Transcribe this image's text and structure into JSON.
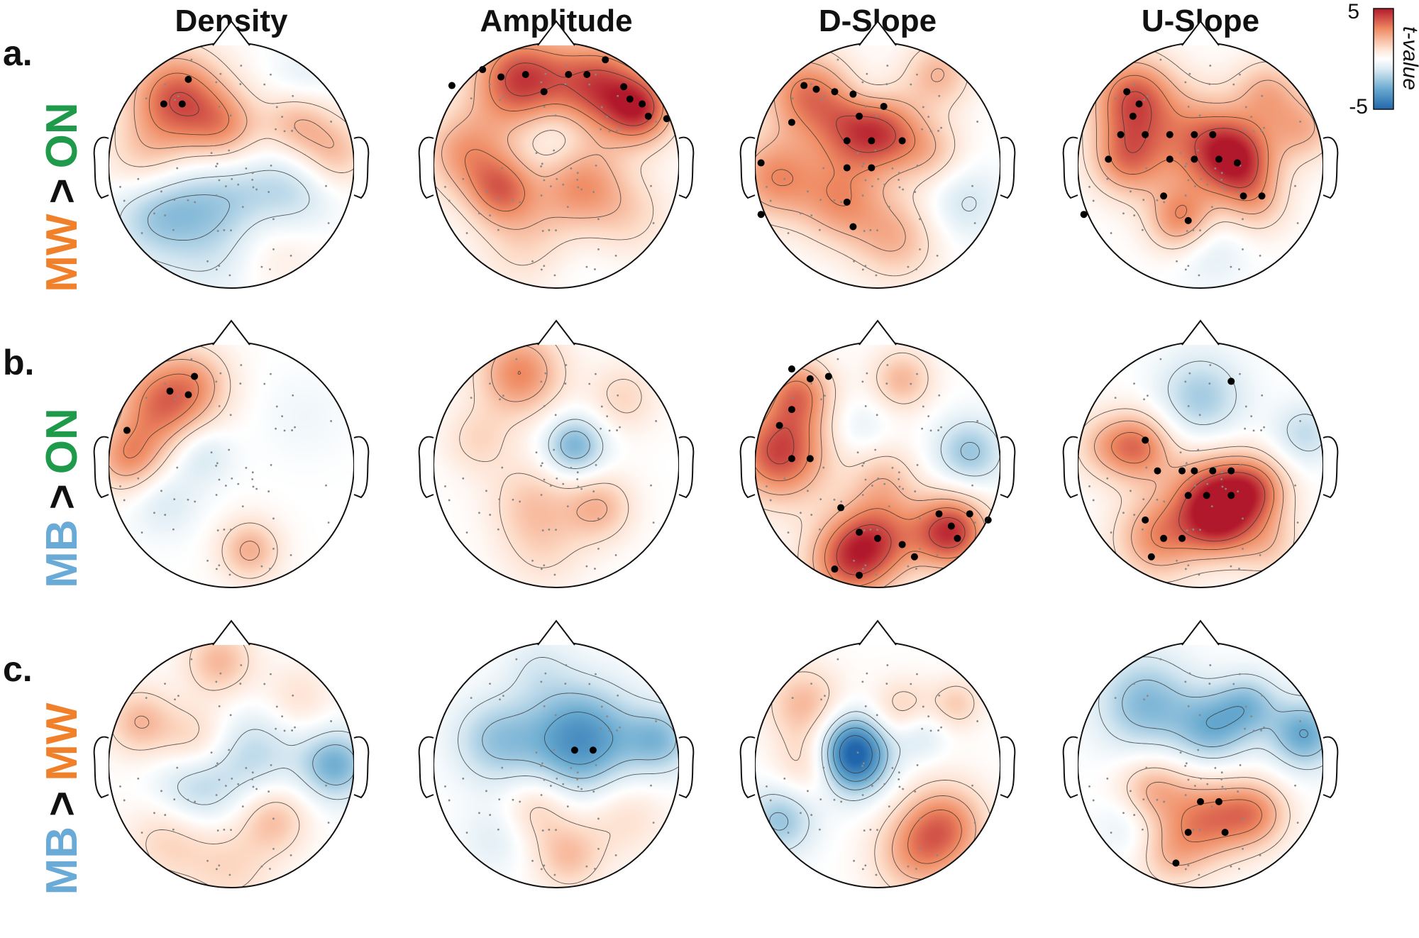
{
  "colors": {
    "mw": "#f0812a",
    "on": "#1e9a4a",
    "mb": "#6aaad6",
    "gt": "#111111",
    "red": "#b2182b",
    "blue": "#2166ac"
  },
  "chart_data": {
    "type": "heatmap",
    "title": "",
    "columns": [
      "Density",
      "Amplitude",
      "D-Slope",
      "U-Slope"
    ],
    "rows": [
      {
        "letter": "a.",
        "left": "MW",
        "op": ">",
        "right": "ON"
      },
      {
        "letter": "b.",
        "left": "MB",
        "op": ">",
        "right": "ON"
      },
      {
        "letter": "c.",
        "left": "MB",
        "op": ">",
        "right": "MW"
      }
    ],
    "colorbar": {
      "label": "t-value",
      "max_label": "5",
      "min_label": "-5",
      "range": [
        -5,
        5
      ]
    },
    "maps": [
      [
        {
          "blobs": [
            [
              -0.45,
              0.55,
              0.28,
              3.8
            ],
            [
              -0.05,
              0.3,
              0.22,
              2.3
            ],
            [
              0.55,
              0.35,
              0.2,
              2.0
            ],
            [
              -0.7,
              0.0,
              0.25,
              1.8
            ],
            [
              0.85,
              0.1,
              0.2,
              1.8
            ],
            [
              -0.6,
              -0.35,
              0.28,
              -2.4
            ],
            [
              0.0,
              -0.3,
              0.3,
              -1.8
            ],
            [
              0.5,
              -0.25,
              0.25,
              -1.6
            ],
            [
              -0.1,
              -0.75,
              0.3,
              -0.9
            ],
            [
              0.3,
              -0.6,
              0.3,
              1.3
            ],
            [
              0.6,
              0.7,
              0.2,
              -0.8
            ]
          ],
          "sig": [
            [
              -0.55,
              0.5
            ],
            [
              -0.4,
              0.5
            ],
            [
              -0.35,
              0.7
            ]
          ]
        },
        {
          "blobs": [
            [
              -0.3,
              0.7,
              0.28,
              4.2
            ],
            [
              0.35,
              0.65,
              0.28,
              3.9
            ],
            [
              0.7,
              0.45,
              0.2,
              3.5
            ],
            [
              -0.75,
              0.1,
              0.25,
              2.5
            ],
            [
              -0.45,
              -0.2,
              0.2,
              2.8
            ],
            [
              0.2,
              -0.15,
              0.25,
              2.5
            ],
            [
              0.0,
              0.25,
              0.2,
              -1.0
            ],
            [
              -0.2,
              -0.6,
              0.3,
              1.5
            ],
            [
              0.6,
              -0.4,
              0.25,
              1.2
            ],
            [
              0.1,
              -0.75,
              0.25,
              -0.5
            ]
          ],
          "sig": [
            [
              -0.6,
              0.78
            ],
            [
              -0.45,
              0.72
            ],
            [
              -0.25,
              0.74
            ],
            [
              -0.1,
              0.6
            ],
            [
              0.1,
              0.74
            ],
            [
              0.25,
              0.74
            ],
            [
              0.4,
              0.86
            ],
            [
              0.55,
              0.64
            ],
            [
              0.6,
              0.54
            ],
            [
              0.7,
              0.5
            ],
            [
              0.75,
              0.4
            ],
            [
              0.9,
              0.38
            ],
            [
              -0.85,
              0.65
            ]
          ]
        },
        {
          "blobs": [
            [
              -0.6,
              0.6,
              0.25,
              3.0
            ],
            [
              -0.2,
              0.3,
              0.25,
              3.0
            ],
            [
              0.1,
              0.25,
              0.22,
              2.5
            ],
            [
              -0.85,
              -0.1,
              0.25,
              2.8
            ],
            [
              -0.3,
              -0.3,
              0.25,
              2.5
            ],
            [
              0.15,
              -0.6,
              0.25,
              2.0
            ],
            [
              0.5,
              0.75,
              0.2,
              2.0
            ],
            [
              0.7,
              -0.3,
              0.22,
              -1.2
            ],
            [
              -0.1,
              0.6,
              0.15,
              -0.6
            ],
            [
              0.45,
              0.1,
              0.2,
              1.5
            ]
          ],
          "sig": [
            [
              -0.6,
              0.65
            ],
            [
              -0.5,
              0.62
            ],
            [
              -0.35,
              0.6
            ],
            [
              -0.2,
              0.58
            ],
            [
              -0.15,
              0.4
            ],
            [
              0.05,
              0.48
            ],
            [
              -0.7,
              0.35
            ],
            [
              -0.25,
              0.2
            ],
            [
              -0.05,
              0.2
            ],
            [
              0.2,
              0.2
            ],
            [
              -0.95,
              0.02
            ],
            [
              -0.25,
              -0.02
            ],
            [
              -0.05,
              -0.02
            ],
            [
              -0.25,
              -0.3
            ],
            [
              -0.2,
              -0.5
            ],
            [
              -0.95,
              -0.4
            ]
          ]
        },
        {
          "blobs": [
            [
              -0.55,
              0.55,
              0.25,
              3.8
            ],
            [
              -0.6,
              0.05,
              0.22,
              3.0
            ],
            [
              0.3,
              0.05,
              0.22,
              3.8
            ],
            [
              0.0,
              0.2,
              0.28,
              2.8
            ],
            [
              -0.15,
              -0.45,
              0.2,
              3.2
            ],
            [
              0.05,
              -0.65,
              0.22,
              -1.2
            ],
            [
              0.55,
              0.6,
              0.2,
              2.0
            ],
            [
              0.85,
              0.3,
              0.2,
              2.0
            ],
            [
              0.45,
              -0.3,
              0.2,
              1.8
            ]
          ],
          "sig": [
            [
              -0.6,
              0.6
            ],
            [
              -0.5,
              0.5
            ],
            [
              -0.55,
              0.4
            ],
            [
              -0.65,
              0.25
            ],
            [
              -0.45,
              0.25
            ],
            [
              -0.25,
              0.25
            ],
            [
              -0.05,
              0.25
            ],
            [
              0.1,
              0.25
            ],
            [
              -0.05,
              0.05
            ],
            [
              0.15,
              0.05
            ],
            [
              -0.25,
              0.05
            ],
            [
              -0.75,
              0.05
            ],
            [
              0.3,
              0.02
            ],
            [
              0.35,
              -0.25
            ],
            [
              0.5,
              -0.25
            ],
            [
              -0.3,
              -0.25
            ],
            [
              -0.1,
              -0.45
            ],
            [
              -0.95,
              -0.4
            ]
          ]
        }
      ],
      [
        {
          "blobs": [
            [
              -0.55,
              0.5,
              0.28,
              3.5
            ],
            [
              -0.85,
              0.05,
              0.2,
              2.5
            ],
            [
              -0.25,
              0.1,
              0.18,
              -1.4
            ],
            [
              -0.55,
              -0.3,
              0.2,
              -1.0
            ],
            [
              0.15,
              -0.7,
              0.18,
              2.2
            ],
            [
              -0.25,
              0.7,
              0.2,
              1.2
            ],
            [
              0.6,
              0.4,
              0.25,
              -0.4
            ]
          ],
          "sig": [
            [
              -0.5,
              0.6
            ],
            [
              -0.35,
              0.57
            ],
            [
              -0.3,
              0.72
            ],
            [
              -0.85,
              0.28
            ]
          ]
        },
        {
          "blobs": [
            [
              -0.3,
              0.75,
              0.25,
              3.0
            ],
            [
              0.15,
              0.15,
              0.18,
              -2.8
            ],
            [
              -0.65,
              0.2,
              0.2,
              1.2
            ],
            [
              0.35,
              -0.35,
              0.2,
              2.0
            ],
            [
              -0.2,
              -0.3,
              0.25,
              1.5
            ],
            [
              -0.1,
              -0.7,
              0.25,
              1.0
            ],
            [
              0.55,
              0.55,
              0.2,
              1.3
            ]
          ],
          "sig": []
        },
        {
          "blobs": [
            [
              -0.8,
              0.1,
              0.28,
              4.2
            ],
            [
              -0.65,
              0.6,
              0.2,
              2.8
            ],
            [
              0.6,
              -0.55,
              0.22,
              4.5
            ],
            [
              0.0,
              -0.6,
              0.25,
              3.0
            ],
            [
              -0.25,
              -0.8,
              0.25,
              3.2
            ],
            [
              0.75,
              0.1,
              0.2,
              -2.2
            ],
            [
              0.2,
              0.7,
              0.18,
              2.0
            ],
            [
              -0.15,
              0.3,
              0.18,
              -0.8
            ],
            [
              0.05,
              -0.1,
              0.2,
              1.5
            ]
          ],
          "sig": [
            [
              -0.7,
              0.78
            ],
            [
              -0.55,
              0.7
            ],
            [
              -0.4,
              0.72
            ],
            [
              -0.8,
              0.32
            ],
            [
              -0.7,
              0.45
            ],
            [
              -0.7,
              0.05
            ],
            [
              -0.55,
              0.05
            ],
            [
              -0.3,
              -0.35
            ],
            [
              -0.15,
              -0.55
            ],
            [
              0.0,
              -0.6
            ],
            [
              0.2,
              -0.65
            ],
            [
              0.3,
              -0.75
            ],
            [
              0.5,
              -0.4
            ],
            [
              0.6,
              -0.5
            ],
            [
              0.65,
              -0.6
            ],
            [
              0.75,
              -0.4
            ],
            [
              0.9,
              -0.45
            ],
            [
              -0.35,
              -0.85
            ],
            [
              -0.15,
              -0.9
            ]
          ]
        },
        {
          "blobs": [
            [
              0.0,
              0.55,
              0.25,
              -2.0
            ],
            [
              -0.5,
              0.15,
              0.2,
              3.0
            ],
            [
              0.1,
              -0.25,
              0.25,
              3.8
            ],
            [
              0.45,
              -0.2,
              0.2,
              3.0
            ],
            [
              -0.35,
              -0.6,
              0.25,
              2.8
            ],
            [
              0.85,
              0.25,
              0.18,
              -1.5
            ],
            [
              -0.8,
              0.15,
              0.2,
              1.5
            ],
            [
              0.15,
              -0.5,
              0.2,
              2.5
            ],
            [
              0.55,
              -0.65,
              0.2,
              1.5
            ]
          ],
          "sig": [
            [
              0.25,
              0.68
            ],
            [
              -0.45,
              0.2
            ],
            [
              -0.35,
              -0.05
            ],
            [
              -0.15,
              -0.05
            ],
            [
              -0.05,
              -0.05
            ],
            [
              0.1,
              -0.05
            ],
            [
              0.25,
              -0.05
            ],
            [
              -0.1,
              -0.25
            ],
            [
              0.05,
              -0.25
            ],
            [
              0.25,
              -0.25
            ],
            [
              -0.45,
              -0.45
            ],
            [
              -0.3,
              -0.6
            ],
            [
              -0.15,
              -0.6
            ],
            [
              -0.4,
              -0.75
            ]
          ]
        }
      ],
      [
        {
          "blobs": [
            [
              -0.1,
              0.85,
              0.2,
              2.0
            ],
            [
              -0.75,
              0.35,
              0.2,
              2.0
            ],
            [
              -0.3,
              0.2,
              0.2,
              1.5
            ],
            [
              -0.3,
              -0.2,
              0.25,
              -1.8
            ],
            [
              0.2,
              0.1,
              0.25,
              -1.5
            ],
            [
              0.85,
              0.0,
              0.2,
              -2.8
            ],
            [
              0.35,
              -0.45,
              0.2,
              1.8
            ],
            [
              -0.5,
              -0.6,
              0.25,
              1.5
            ],
            [
              0.0,
              -0.85,
              0.25,
              1.2
            ],
            [
              0.55,
              0.55,
              0.2,
              1.0
            ]
          ],
          "sig": []
        },
        {
          "blobs": [
            [
              0.2,
              0.2,
              0.32,
              -3.8
            ],
            [
              -0.5,
              0.2,
              0.25,
              -2.0
            ],
            [
              0.85,
              0.2,
              0.2,
              -2.2
            ],
            [
              -0.15,
              -0.35,
              0.2,
              1.5
            ],
            [
              0.1,
              -0.75,
              0.2,
              1.8
            ],
            [
              0.55,
              -0.4,
              0.25,
              1.2
            ],
            [
              -0.5,
              -0.6,
              0.2,
              -0.8
            ],
            [
              -0.15,
              0.8,
              0.2,
              -0.8
            ]
          ],
          "sig": [
            [
              0.15,
              0.12
            ],
            [
              0.3,
              0.12
            ]
          ]
        },
        {
          "blobs": [
            [
              -0.2,
              0.15,
              0.2,
              -3.5
            ],
            [
              -0.2,
              0.0,
              0.2,
              -2.5
            ],
            [
              -0.8,
              -0.45,
              0.2,
              -2.2
            ],
            [
              0.55,
              -0.5,
              0.25,
              3.0
            ],
            [
              0.3,
              -0.75,
              0.25,
              2.0
            ],
            [
              -0.6,
              0.5,
              0.22,
              2.0
            ],
            [
              0.2,
              0.45,
              0.18,
              1.5
            ],
            [
              0.35,
              0.25,
              0.15,
              -1.2
            ],
            [
              0.65,
              0.5,
              0.15,
              1.5
            ],
            [
              -0.55,
              0.0,
              0.2,
              1.5
            ]
          ],
          "sig": []
        },
        {
          "blobs": [
            [
              -0.45,
              0.5,
              0.28,
              -2.5
            ],
            [
              0.1,
              0.3,
              0.22,
              -2.5
            ],
            [
              0.4,
              0.5,
              0.18,
              -2.0
            ],
            [
              0.85,
              0.25,
              0.2,
              -3.0
            ],
            [
              0.05,
              -0.45,
              0.25,
              3.0
            ],
            [
              0.45,
              -0.4,
              0.2,
              2.5
            ],
            [
              -0.4,
              -0.2,
              0.2,
              2.0
            ],
            [
              -0.6,
              -0.5,
              0.18,
              -0.8
            ],
            [
              -0.25,
              -0.75,
              0.2,
              1.5
            ]
          ],
          "sig": [
            [
              0.0,
              -0.3
            ],
            [
              0.15,
              -0.3
            ],
            [
              -0.1,
              -0.55
            ],
            [
              0.2,
              -0.55
            ],
            [
              -0.2,
              -0.8
            ]
          ]
        }
      ]
    ]
  }
}
